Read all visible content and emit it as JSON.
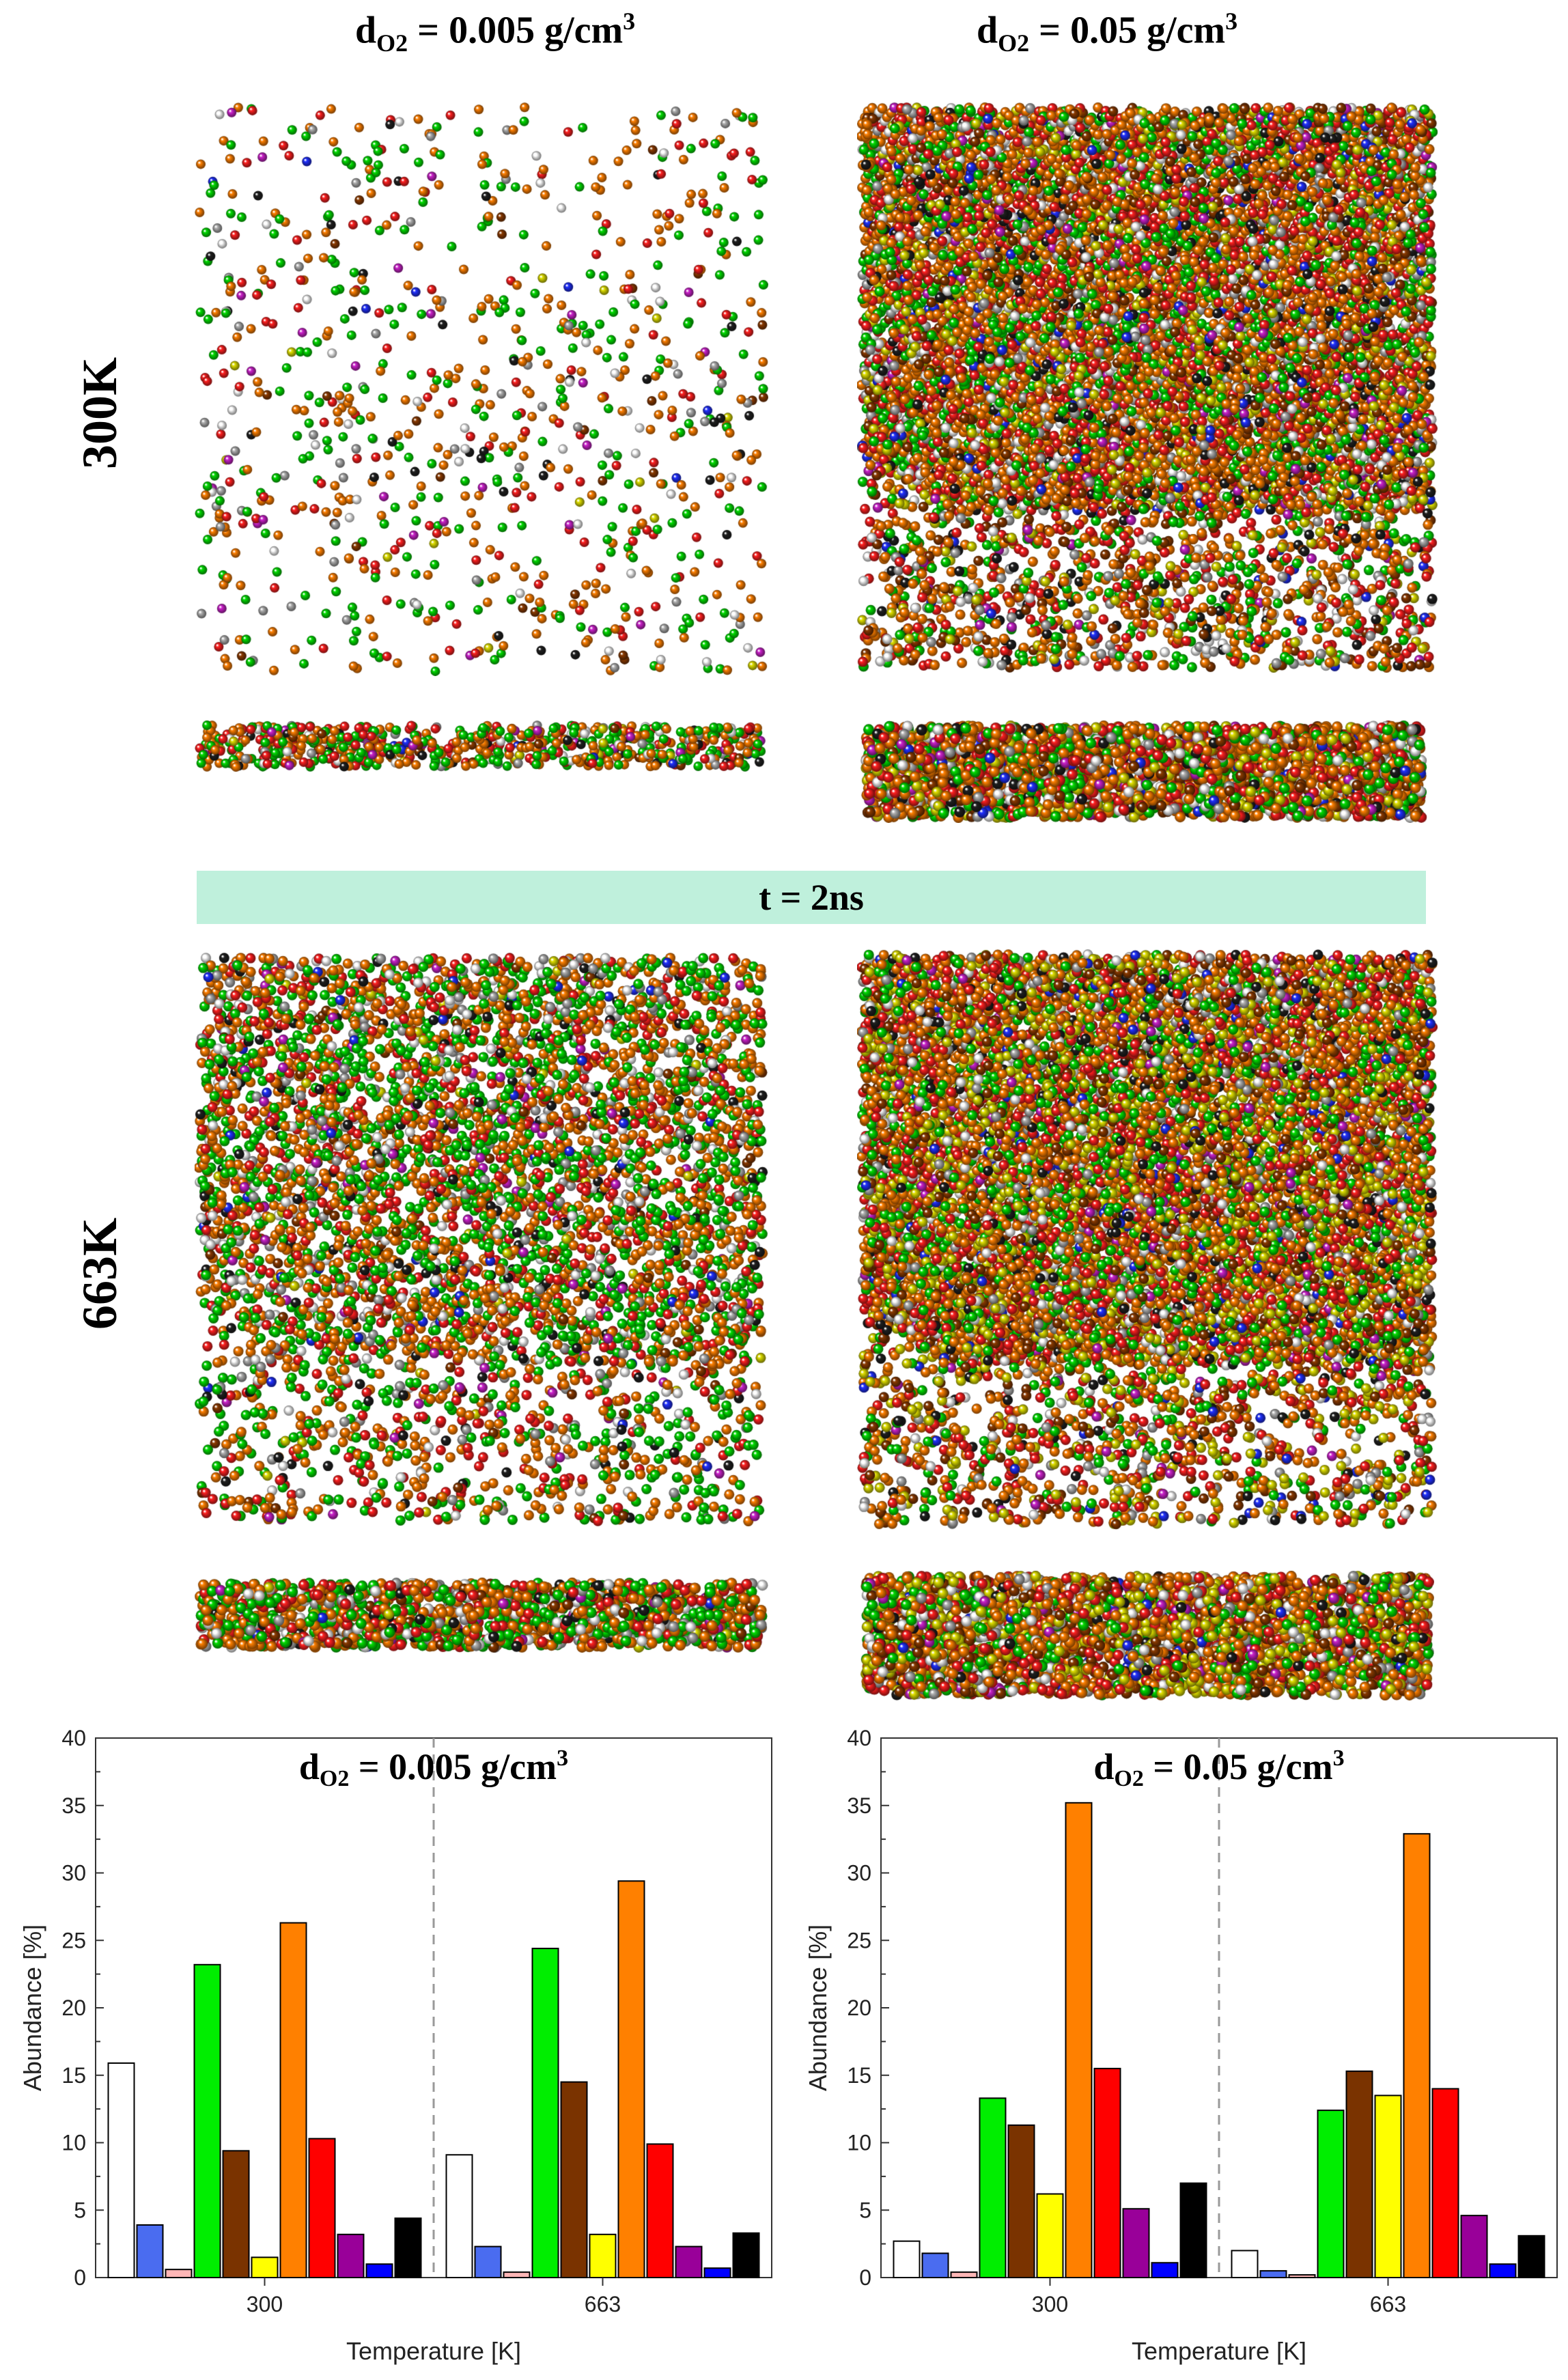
{
  "figure": {
    "columns": [
      {
        "title_main": "d",
        "title_sub": "O2",
        "title_rest": " = 0.005 g/cm",
        "title_sup": "3"
      },
      {
        "title_main": "d",
        "title_sub": "O2",
        "title_rest": " = 0.05 g/cm",
        "title_sup": "3"
      }
    ],
    "rows": [
      {
        "label": "300K"
      },
      {
        "label": "663K"
      }
    ],
    "banner": "t = 2ns",
    "atom_colors": [
      "#ff8000",
      "#00dd00",
      "#ff2020",
      "#ffffff",
      "#b0b0b0",
      "#202020",
      "#8a3a00",
      "#e0e000",
      "#2030ff",
      "#cc22cc"
    ]
  },
  "chart_data": [
    {
      "type": "bar",
      "title_main": "d",
      "title_sub": "O2",
      "title_rest": " = 0.005 g/cm",
      "title_sup": "3",
      "categories": [
        "300",
        "663"
      ],
      "xlabel": "Temperature [K]",
      "ylabel": "Abundance [%]",
      "ylim": [
        0,
        40
      ],
      "yticks": [
        "0",
        "5",
        "10",
        "15",
        "20",
        "25",
        "30",
        "35",
        "40"
      ],
      "bar_colors": [
        "#ffffff",
        "#4a6cf0",
        "#ffb6b6",
        "#00ee00",
        "#7a3300",
        "#ffff00",
        "#ff8000",
        "#ff0000",
        "#990099",
        "#0000ff",
        "#000000"
      ],
      "series_values": [
        [
          15.9,
          3.9,
          0.6,
          23.2,
          9.4,
          1.5,
          26.3,
          10.3,
          3.2,
          1.0,
          4.4
        ],
        [
          9.1,
          2.3,
          0.4,
          24.4,
          14.5,
          3.2,
          29.4,
          9.9,
          2.3,
          0.7,
          3.3
        ]
      ],
      "separator": "dashed"
    },
    {
      "type": "bar",
      "title_main": "d",
      "title_sub": "O2",
      "title_rest": " = 0.05 g/cm",
      "title_sup": "3",
      "categories": [
        "300",
        "663"
      ],
      "xlabel": "Temperature [K]",
      "ylabel": "Abundance [%]",
      "ylim": [
        0,
        40
      ],
      "yticks": [
        "0",
        "5",
        "10",
        "15",
        "20",
        "25",
        "30",
        "35",
        "40"
      ],
      "bar_colors": [
        "#ffffff",
        "#4a6cf0",
        "#ffb6b6",
        "#00ee00",
        "#7a3300",
        "#ffff00",
        "#ff8000",
        "#ff0000",
        "#990099",
        "#0000ff",
        "#000000"
      ],
      "series_values": [
        [
          2.7,
          1.8,
          0.4,
          13.3,
          11.3,
          6.2,
          35.2,
          15.5,
          5.1,
          1.1,
          7.0
        ],
        [
          2.0,
          0.5,
          0.2,
          12.4,
          15.3,
          13.5,
          32.9,
          14.0,
          4.6,
          1.0,
          3.1
        ]
      ],
      "separator": "dashed"
    }
  ]
}
